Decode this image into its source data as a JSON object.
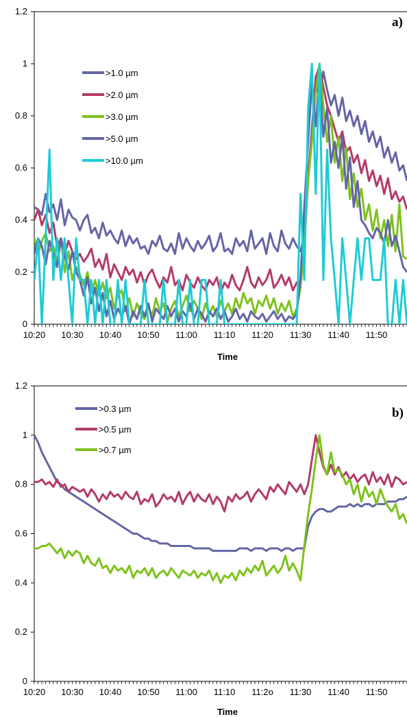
{
  "chart_data": [
    {
      "type": "line",
      "panel_label": "a)",
      "xlabel": "Time",
      "ylabel": "",
      "ylim": [
        0,
        1.2
      ],
      "y_ticks": [
        "0",
        "0.2",
        "0.4",
        "0.6",
        "0.8",
        "1",
        "1.2"
      ],
      "x_ticks": [
        "10:20",
        "10:30",
        "10:40",
        "10:50",
        "11:00",
        "11:10",
        "11:20",
        "11:30",
        "11:40",
        "11:50"
      ],
      "legend_position": "top-left",
      "grid": false,
      "x": [
        "10:20",
        "10:21",
        "10:22",
        "10:23",
        "10:24",
        "10:25",
        "10:26",
        "10:27",
        "10:28",
        "10:29",
        "10:30",
        "10:31",
        "10:32",
        "10:33",
        "10:34",
        "10:35",
        "10:36",
        "10:37",
        "10:38",
        "10:39",
        "10:40",
        "10:41",
        "10:42",
        "10:43",
        "10:44",
        "10:45",
        "10:46",
        "10:47",
        "10:48",
        "10:49",
        "10:50",
        "10:51",
        "10:52",
        "10:53",
        "10:54",
        "10:55",
        "10:56",
        "10:57",
        "10:58",
        "10:59",
        "11:00",
        "11:01",
        "11:02",
        "11:03",
        "11:04",
        "11:05",
        "11:06",
        "11:07",
        "11:08",
        "11:09",
        "11:10",
        "11:11",
        "11:12",
        "11:13",
        "11:14",
        "11:15",
        "11:16",
        "11:17",
        "11:18",
        "11:19",
        "11:20",
        "11:21",
        "11:22",
        "11:23",
        "11:24",
        "11:25",
        "11:26",
        "11:27",
        "11:28",
        "11:29",
        "11:30",
        "11:31",
        "11:32",
        "11:33",
        "11:34",
        "11:35",
        "11:36",
        "11:37",
        "11:38",
        "11:39",
        "11:40",
        "11:41",
        "11:42",
        "11:43",
        "11:44",
        "11:45",
        "11:46",
        "11:47",
        "11:48",
        "11:49",
        "11:50",
        "11:51",
        "11:52",
        "11:53",
        "11:54",
        "11:55",
        "11:56",
        "11:57",
        "11:58"
      ],
      "series": [
        {
          "name": ">1.0 µm",
          "color": "#6464a6",
          "values": [
            0.45,
            0.44,
            0.42,
            0.5,
            0.43,
            0.46,
            0.4,
            0.48,
            0.38,
            0.44,
            0.41,
            0.4,
            0.36,
            0.4,
            0.42,
            0.35,
            0.37,
            0.33,
            0.39,
            0.34,
            0.36,
            0.33,
            0.31,
            0.36,
            0.3,
            0.34,
            0.31,
            0.33,
            0.29,
            0.3,
            0.27,
            0.32,
            0.3,
            0.34,
            0.29,
            0.28,
            0.31,
            0.27,
            0.35,
            0.29,
            0.33,
            0.3,
            0.28,
            0.32,
            0.29,
            0.31,
            0.34,
            0.28,
            0.3,
            0.35,
            0.28,
            0.29,
            0.27,
            0.33,
            0.3,
            0.32,
            0.28,
            0.36,
            0.29,
            0.31,
            0.33,
            0.27,
            0.35,
            0.3,
            0.28,
            0.36,
            0.31,
            0.29,
            0.33,
            0.3,
            0.28,
            0.34,
            0.55,
            0.75,
            0.94,
            0.86,
            0.97,
            0.9,
            0.84,
            0.88,
            0.8,
            0.87,
            0.78,
            0.82,
            0.76,
            0.8,
            0.73,
            0.78,
            0.7,
            0.74,
            0.68,
            0.72,
            0.64,
            0.68,
            0.62,
            0.66,
            0.59,
            0.61,
            0.55
          ]
        },
        {
          "name": ">2.0 µm",
          "color": "#b33a6a",
          "values": [
            0.4,
            0.44,
            0.38,
            0.42,
            0.35,
            0.39,
            0.3,
            0.33,
            0.27,
            0.32,
            0.28,
            0.25,
            0.27,
            0.24,
            0.26,
            0.29,
            0.22,
            0.25,
            0.21,
            0.27,
            0.18,
            0.23,
            0.2,
            0.17,
            0.22,
            0.19,
            0.21,
            0.16,
            0.2,
            0.15,
            0.19,
            0.21,
            0.17,
            0.14,
            0.18,
            0.16,
            0.22,
            0.15,
            0.17,
            0.13,
            0.19,
            0.16,
            0.14,
            0.18,
            0.15,
            0.13,
            0.17,
            0.15,
            0.18,
            0.12,
            0.16,
            0.14,
            0.19,
            0.15,
            0.13,
            0.17,
            0.22,
            0.16,
            0.14,
            0.18,
            0.15,
            0.17,
            0.21,
            0.14,
            0.16,
            0.19,
            0.15,
            0.18,
            0.13,
            0.16,
            0.15,
            0.3,
            0.58,
            0.72,
            0.95,
            0.99,
            0.91,
            0.84,
            0.8,
            0.75,
            0.7,
            0.74,
            0.66,
            0.68,
            0.62,
            0.65,
            0.58,
            0.63,
            0.55,
            0.59,
            0.53,
            0.57,
            0.5,
            0.56,
            0.48,
            0.51,
            0.47,
            0.49,
            0.44
          ]
        },
        {
          "name": ">3.0 µm",
          "color": "#7dc21b",
          "values": [
            0.33,
            0.27,
            0.32,
            0.35,
            0.28,
            0.3,
            0.24,
            0.33,
            0.2,
            0.28,
            0.17,
            0.22,
            0.19,
            0.15,
            0.2,
            0.12,
            0.17,
            0.11,
            0.16,
            0.1,
            0.14,
            0.06,
            0.11,
            0.13,
            0.05,
            0.1,
            0.03,
            0.08,
            0.04,
            0.02,
            0.07,
            0.03,
            0.1,
            0.05,
            0.08,
            0.01,
            0.06,
            0.09,
            0.03,
            0.07,
            0.11,
            0.05,
            0.09,
            0.06,
            0.02,
            0.08,
            0.04,
            0.07,
            0.03,
            0.09,
            0.05,
            0.08,
            0.04,
            0.1,
            0.06,
            0.12,
            0.08,
            0.1,
            0.04,
            0.09,
            0.07,
            0.11,
            0.06,
            0.1,
            0.04,
            0.08,
            0.05,
            0.09,
            0.03,
            0.06,
            0.14,
            0.3,
            0.55,
            0.7,
            0.89,
            1.0,
            0.84,
            0.7,
            0.8,
            0.62,
            0.72,
            0.55,
            0.68,
            0.48,
            0.58,
            0.45,
            0.52,
            0.4,
            0.46,
            0.36,
            0.44,
            0.33,
            0.4,
            0.3,
            0.42,
            0.28,
            0.46,
            0.26,
            0.25
          ]
        },
        {
          "name": ">5.0 µm",
          "color": "#6464a6",
          "values": [
            0.27,
            0.33,
            0.3,
            0.23,
            0.32,
            0.27,
            0.22,
            0.33,
            0.26,
            0.21,
            0.28,
            0.2,
            0.17,
            0.11,
            0.18,
            0.08,
            0.14,
            0.05,
            0.12,
            0.03,
            0.09,
            0.02,
            0.06,
            0.03,
            0.07,
            0.0,
            0.05,
            0.02,
            0.07,
            0.03,
            0.08,
            0.01,
            0.06,
            0.04,
            0.02,
            0.07,
            0.03,
            0.06,
            0.01,
            0.05,
            0.03,
            0.08,
            0.02,
            0.06,
            0.04,
            0.01,
            0.05,
            0.03,
            0.06,
            0.02,
            0.05,
            0.01,
            0.03,
            0.06,
            0.02,
            0.04,
            0.01,
            0.05,
            0.03,
            0.02,
            0.04,
            0.01,
            0.03,
            0.05,
            0.02,
            0.04,
            0.01,
            0.03,
            0.02,
            0.04,
            0.18,
            0.45,
            0.7,
            0.93,
            0.76,
            0.95,
            0.72,
            0.83,
            0.62,
            0.7,
            0.6,
            0.72,
            0.52,
            0.64,
            0.45,
            0.55,
            0.4,
            0.38,
            0.35,
            0.33,
            0.37,
            0.35,
            0.31,
            0.4,
            0.3,
            0.34,
            0.28,
            0.22,
            0.2
          ]
        },
        {
          "name": ">10.0 µm",
          "color": "#1ecbd6",
          "values": [
            0.17,
            0.33,
            0.0,
            0.33,
            0.67,
            0.17,
            0.33,
            0.17,
            0.33,
            0.17,
            0.0,
            0.33,
            0.17,
            0.17,
            0.0,
            0.17,
            0.0,
            0.17,
            0.0,
            0.17,
            0.0,
            0.0,
            0.17,
            0.0,
            0.17,
            0.0,
            0.0,
            0.0,
            0.0,
            0.17,
            0.0,
            0.0,
            0.0,
            0.0,
            0.17,
            0.0,
            0.0,
            0.0,
            0.17,
            0.0,
            0.0,
            0.17,
            0.0,
            0.0,
            0.17,
            0.17,
            0.0,
            0.0,
            0.0,
            0.17,
            0.0,
            0.0,
            0.0,
            0.0,
            0.0,
            0.0,
            0.0,
            0.0,
            0.0,
            0.0,
            0.0,
            0.0,
            0.0,
            0.0,
            0.0,
            0.0,
            0.0,
            0.0,
            0.0,
            0.0,
            0.5,
            0.17,
            0.83,
            1.0,
            0.5,
            1.0,
            0.17,
            0.67,
            0.33,
            0.17,
            0.0,
            0.33,
            0.17,
            0.0,
            0.17,
            0.33,
            0.17,
            0.33,
            0.33,
            0.17,
            0.17,
            0.17,
            0.33,
            0.0,
            0.0,
            0.17,
            0.0,
            0.17,
            0.0
          ]
        }
      ]
    },
    {
      "type": "line",
      "panel_label": "b)",
      "xlabel": "Time",
      "ylabel": "",
      "ylim": [
        0,
        1.2
      ],
      "y_ticks": [
        "0",
        "0.2",
        "0.4",
        "0.6",
        "0.8",
        "1",
        "1.2"
      ],
      "x_ticks": [
        "10:20",
        "10:30",
        "10:40",
        "10:50",
        "11:00",
        "11:10",
        "11:2ο",
        "11:30",
        "11:40",
        "11:50"
      ],
      "legend_position": "top-left",
      "grid": false,
      "x": [
        "10:20",
        "10:21",
        "10:22",
        "10:23",
        "10:24",
        "10:25",
        "10:26",
        "10:27",
        "10:28",
        "10:29",
        "10:30",
        "10:31",
        "10:32",
        "10:33",
        "10:34",
        "10:35",
        "10:36",
        "10:37",
        "10:38",
        "10:39",
        "10:40",
        "10:41",
        "10:42",
        "10:43",
        "10:44",
        "10:45",
        "10:46",
        "10:47",
        "10:48",
        "10:49",
        "10:50",
        "10:51",
        "10:52",
        "10:53",
        "10:54",
        "10:55",
        "10:56",
        "10:57",
        "10:58",
        "10:59",
        "11:00",
        "11:01",
        "11:02",
        "11:03",
        "11:04",
        "11:05",
        "11:06",
        "11:07",
        "11:08",
        "11:09",
        "11:10",
        "11:11",
        "11:12",
        "11:13",
        "11:14",
        "11:15",
        "11:16",
        "11:17",
        "11:18",
        "11:19",
        "11:20",
        "11:21",
        "11:22",
        "11:23",
        "11:24",
        "11:25",
        "11:26",
        "11:27",
        "11:28",
        "11:29",
        "11:30",
        "11:31",
        "11:32",
        "11:33",
        "11:34",
        "11:35",
        "11:36",
        "11:37",
        "11:38",
        "11:39",
        "11:40",
        "11:41",
        "11:42",
        "11:43",
        "11:44",
        "11:45",
        "11:46",
        "11:47",
        "11:48",
        "11:49",
        "11:50",
        "11:51",
        "11:52",
        "11:53",
        "11:54",
        "11:55",
        "11:56",
        "11:57",
        "11:58"
      ],
      "series": [
        {
          "name": ">0.3 µm",
          "color": "#6464a6",
          "values": [
            1.0,
            0.97,
            0.93,
            0.9,
            0.87,
            0.84,
            0.81,
            0.8,
            0.78,
            0.77,
            0.76,
            0.75,
            0.74,
            0.73,
            0.72,
            0.71,
            0.7,
            0.69,
            0.68,
            0.67,
            0.66,
            0.65,
            0.64,
            0.63,
            0.62,
            0.61,
            0.6,
            0.6,
            0.59,
            0.58,
            0.58,
            0.57,
            0.57,
            0.56,
            0.56,
            0.56,
            0.55,
            0.55,
            0.55,
            0.55,
            0.55,
            0.55,
            0.54,
            0.54,
            0.54,
            0.54,
            0.54,
            0.53,
            0.53,
            0.53,
            0.53,
            0.53,
            0.53,
            0.53,
            0.54,
            0.54,
            0.54,
            0.53,
            0.54,
            0.54,
            0.54,
            0.53,
            0.54,
            0.54,
            0.54,
            0.53,
            0.54,
            0.54,
            0.53,
            0.54,
            0.54,
            0.54,
            0.63,
            0.67,
            0.69,
            0.7,
            0.7,
            0.69,
            0.69,
            0.7,
            0.71,
            0.71,
            0.71,
            0.72,
            0.71,
            0.72,
            0.71,
            0.72,
            0.72,
            0.71,
            0.72,
            0.72,
            0.72,
            0.73,
            0.73,
            0.73,
            0.74,
            0.74,
            0.75
          ]
        },
        {
          "name": ">0.5 µm",
          "color": "#b33a6a",
          "values": [
            0.81,
            0.81,
            0.82,
            0.8,
            0.81,
            0.79,
            0.82,
            0.79,
            0.8,
            0.77,
            0.79,
            0.78,
            0.77,
            0.78,
            0.75,
            0.78,
            0.76,
            0.73,
            0.76,
            0.74,
            0.77,
            0.75,
            0.76,
            0.74,
            0.77,
            0.75,
            0.74,
            0.77,
            0.72,
            0.74,
            0.73,
            0.76,
            0.71,
            0.73,
            0.76,
            0.74,
            0.75,
            0.73,
            0.77,
            0.72,
            0.75,
            0.77,
            0.73,
            0.76,
            0.74,
            0.73,
            0.76,
            0.72,
            0.75,
            0.73,
            0.69,
            0.75,
            0.73,
            0.76,
            0.74,
            0.75,
            0.77,
            0.73,
            0.76,
            0.78,
            0.76,
            0.74,
            0.79,
            0.77,
            0.8,
            0.78,
            0.76,
            0.81,
            0.79,
            0.77,
            0.8,
            0.76,
            0.8,
            0.9,
            1.0,
            0.93,
            0.87,
            0.84,
            0.88,
            0.84,
            0.87,
            0.83,
            0.85,
            0.82,
            0.84,
            0.81,
            0.83,
            0.84,
            0.8,
            0.85,
            0.81,
            0.83,
            0.8,
            0.84,
            0.79,
            0.83,
            0.82,
            0.8,
            0.81
          ]
        },
        {
          "name": ">0.7 µm",
          "color": "#7dc21b",
          "values": [
            0.54,
            0.54,
            0.55,
            0.55,
            0.56,
            0.54,
            0.52,
            0.54,
            0.5,
            0.53,
            0.51,
            0.53,
            0.52,
            0.48,
            0.51,
            0.48,
            0.47,
            0.5,
            0.46,
            0.47,
            0.44,
            0.47,
            0.45,
            0.46,
            0.44,
            0.47,
            0.42,
            0.45,
            0.44,
            0.46,
            0.43,
            0.46,
            0.42,
            0.44,
            0.45,
            0.43,
            0.46,
            0.44,
            0.42,
            0.45,
            0.44,
            0.43,
            0.45,
            0.42,
            0.44,
            0.43,
            0.45,
            0.41,
            0.44,
            0.4,
            0.43,
            0.42,
            0.44,
            0.41,
            0.45,
            0.43,
            0.46,
            0.44,
            0.47,
            0.45,
            0.49,
            0.43,
            0.45,
            0.47,
            0.44,
            0.46,
            0.51,
            0.45,
            0.48,
            0.45,
            0.41,
            0.55,
            0.68,
            0.78,
            0.9,
            1.0,
            0.88,
            0.84,
            0.93,
            0.85,
            0.86,
            0.84,
            0.8,
            0.82,
            0.76,
            0.8,
            0.73,
            0.79,
            0.75,
            0.77,
            0.72,
            0.78,
            0.74,
            0.71,
            0.69,
            0.72,
            0.66,
            0.68,
            0.64
          ]
        }
      ]
    }
  ]
}
